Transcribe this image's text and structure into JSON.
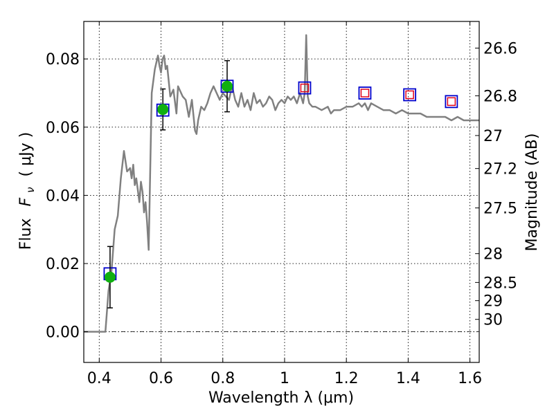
{
  "chart_data": {
    "type": "line",
    "title": "",
    "xlabel": "Wavelength  λ (μm)",
    "ylabel_parts": {
      "prefix": "Flux",
      "symbol": "F",
      "subscript": "ν",
      "unit": "(  μJy  )"
    },
    "ylabel_right": "Magnitude (AB)",
    "xlim": [
      0.35,
      1.63
    ],
    "ylim": [
      -0.009,
      0.091
    ],
    "grid": true,
    "x_ticks": [
      0.4,
      0.6,
      0.8,
      1.0,
      1.2,
      1.4,
      1.6
    ],
    "x_tick_labels": [
      "0.4",
      "0.6",
      "0.8",
      "1",
      "1.2",
      "1.4",
      "1.6"
    ],
    "y_ticks": [
      0.0,
      0.02,
      0.04,
      0.06,
      0.08
    ],
    "y_tick_labels": [
      "0.00",
      "0.02",
      "0.04",
      "0.06",
      "0.08"
    ],
    "mag_ticks": [
      26.6,
      26.8,
      27.0,
      27.2,
      27.5,
      28.0,
      28.5,
      29.0,
      30.0
    ],
    "mag_tick_labels": [
      "26.6",
      "26.8",
      "27",
      "27.2",
      "27.5",
      "28",
      "28.5",
      "29",
      "30"
    ],
    "series": [
      {
        "kind": "line",
        "color": "#808080",
        "x": [
          0.35,
          0.42,
          0.43,
          0.44,
          0.45,
          0.46,
          0.47,
          0.48,
          0.49,
          0.5,
          0.505,
          0.51,
          0.515,
          0.52,
          0.53,
          0.535,
          0.54,
          0.545,
          0.55,
          0.555,
          0.56,
          0.57,
          0.58,
          0.59,
          0.595,
          0.6,
          0.605,
          0.61,
          0.615,
          0.62,
          0.63,
          0.64,
          0.65,
          0.655,
          0.66,
          0.67,
          0.68,
          0.69,
          0.7,
          0.71,
          0.715,
          0.72,
          0.73,
          0.74,
          0.75,
          0.76,
          0.77,
          0.78,
          0.79,
          0.8,
          0.81,
          0.82,
          0.83,
          0.84,
          0.85,
          0.86,
          0.87,
          0.88,
          0.89,
          0.9,
          0.91,
          0.92,
          0.93,
          0.94,
          0.95,
          0.96,
          0.97,
          0.98,
          0.99,
          1.0,
          1.01,
          1.02,
          1.03,
          1.04,
          1.05,
          1.06,
          1.065,
          1.07,
          1.075,
          1.08,
          1.09,
          1.1,
          1.12,
          1.14,
          1.15,
          1.16,
          1.18,
          1.2,
          1.22,
          1.24,
          1.25,
          1.26,
          1.27,
          1.28,
          1.3,
          1.32,
          1.34,
          1.36,
          1.38,
          1.4,
          1.42,
          1.44,
          1.46,
          1.48,
          1.5,
          1.52,
          1.54,
          1.56,
          1.58,
          1.6,
          1.63
        ],
        "y": [
          0.0,
          0.0,
          0.012,
          0.018,
          0.03,
          0.034,
          0.045,
          0.053,
          0.047,
          0.048,
          0.045,
          0.049,
          0.043,
          0.045,
          0.038,
          0.044,
          0.041,
          0.035,
          0.038,
          0.032,
          0.024,
          0.07,
          0.077,
          0.081,
          0.078,
          0.076,
          0.08,
          0.081,
          0.077,
          0.078,
          0.069,
          0.071,
          0.064,
          0.072,
          0.071,
          0.069,
          0.068,
          0.063,
          0.068,
          0.059,
          0.058,
          0.062,
          0.066,
          0.065,
          0.067,
          0.07,
          0.072,
          0.07,
          0.068,
          0.07,
          0.069,
          0.068,
          0.072,
          0.068,
          0.066,
          0.07,
          0.066,
          0.068,
          0.065,
          0.07,
          0.067,
          0.068,
          0.066,
          0.067,
          0.069,
          0.068,
          0.065,
          0.067,
          0.068,
          0.067,
          0.069,
          0.068,
          0.069,
          0.067,
          0.07,
          0.067,
          0.07,
          0.087,
          0.069,
          0.067,
          0.066,
          0.066,
          0.065,
          0.066,
          0.064,
          0.065,
          0.065,
          0.066,
          0.066,
          0.067,
          0.066,
          0.067,
          0.065,
          0.067,
          0.066,
          0.065,
          0.065,
          0.064,
          0.065,
          0.064,
          0.064,
          0.064,
          0.063,
          0.063,
          0.063,
          0.063,
          0.062,
          0.063,
          0.062,
          0.062,
          0.062
        ]
      },
      {
        "kind": "scatter",
        "marker": "open-square",
        "color": "#0000cc",
        "x": [
          0.435,
          0.606,
          0.814,
          1.065,
          1.26,
          1.405,
          1.54
        ],
        "y": [
          0.017,
          0.065,
          0.072,
          0.0715,
          0.07,
          0.0695,
          0.0675
        ]
      },
      {
        "kind": "scatter",
        "marker": "open-square",
        "color": "#e0001a",
        "x": [
          1.065,
          1.26,
          1.405,
          1.54
        ],
        "y": [
          0.0715,
          0.07,
          0.0695,
          0.0675
        ]
      },
      {
        "kind": "scatter",
        "marker": "circle",
        "color": "#10b010",
        "x": [
          0.435,
          0.606,
          0.814
        ],
        "y": [
          0.016,
          0.0652,
          0.072
        ],
        "err": [
          0.009,
          0.006,
          0.0075
        ]
      }
    ]
  }
}
